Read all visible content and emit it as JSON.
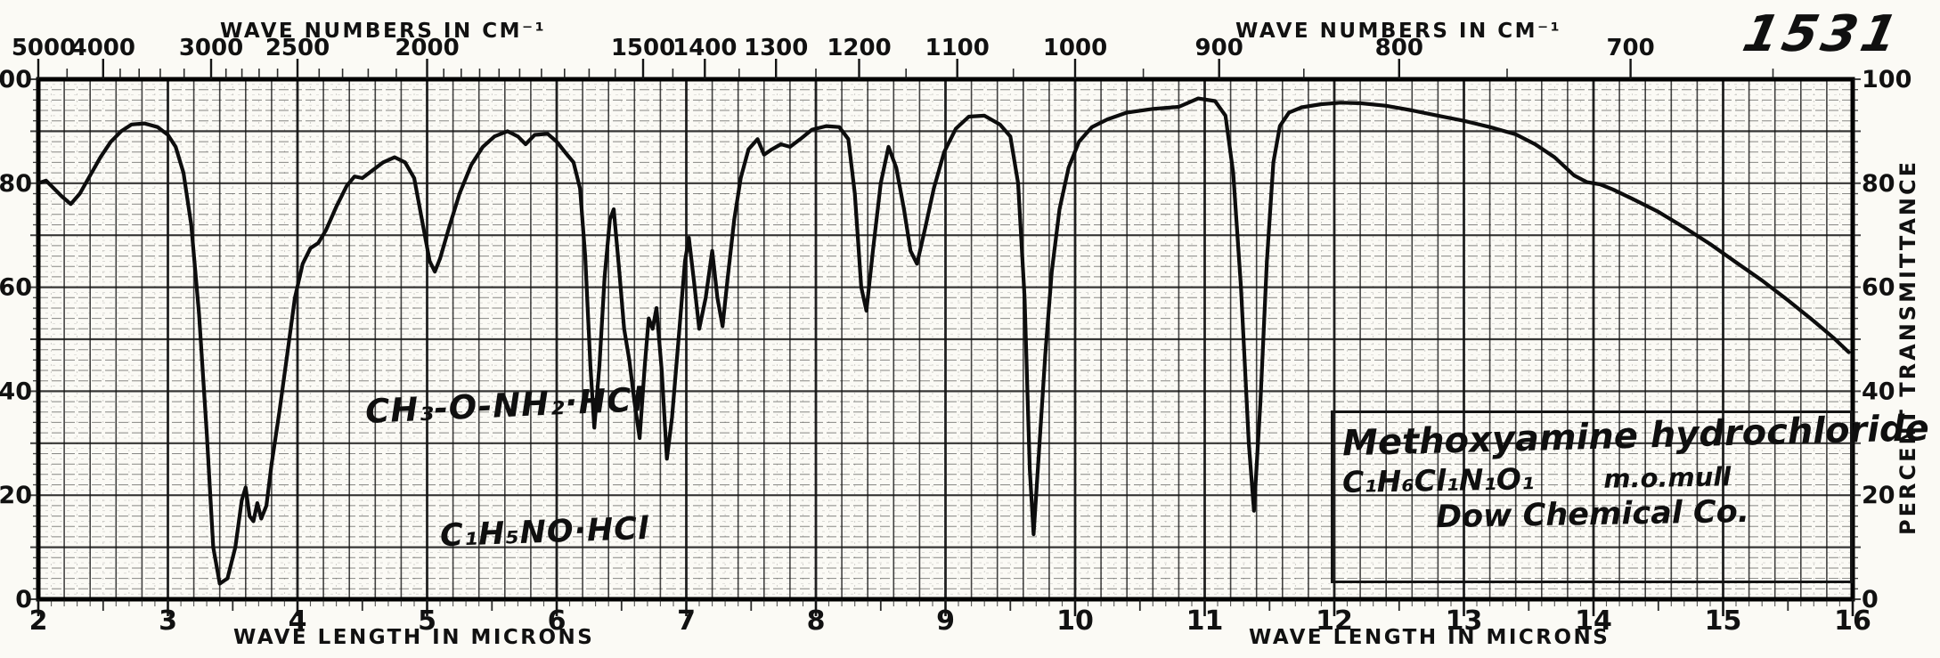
{
  "header": {
    "sheet_number": "1531"
  },
  "axes": {
    "top": {
      "title": "WAVE NUMBERS IN CM⁻¹"
    },
    "bottom": {
      "title": "WAVE LENGTH IN MICRONS"
    },
    "right": {
      "title": "PERCENT TRANSMITTANCE"
    }
  },
  "annotations": {
    "curve_label_structural": "CH₃-O-NH₂·HCl",
    "curve_label_empirical": "C₁H₅NO·HCl",
    "infobox": {
      "compound_name": "Methoxyamine hydrochloride",
      "formula": "C₁H₆Cl₁N₁O₁",
      "preparation": "m.o.mull",
      "company": "Dow Chemical Co."
    }
  },
  "colors": {
    "ink": "#141414",
    "paper": "#fbfaf5"
  },
  "chart_data": {
    "type": "line",
    "title": "Infrared absorption spectrum, sheet 1531 — Methoxyamine hydrochloride, m.o. mull, Dow Chemical Co.",
    "xlabel": "WAVE LENGTH IN MICRONS",
    "x2label": "WAVE NUMBERS IN CM⁻¹",
    "ylabel": "PERCENT TRANSMITTANCE",
    "xlim": [
      2,
      16
    ],
    "ylim": [
      0,
      100
    ],
    "grid": true,
    "x_ticks_microns": [
      2,
      3,
      4,
      5,
      6,
      7,
      8,
      9,
      10,
      11,
      12,
      13,
      14,
      15,
      16
    ],
    "y_ticks": [
      0,
      20,
      40,
      60,
      80,
      100
    ],
    "top_ticks_wavenumbers_major": [
      5000,
      4000,
      3000,
      2500,
      2000,
      1500,
      1400,
      1300,
      1200,
      1100,
      1000,
      900,
      800,
      700
    ],
    "top_ticks_wavenumbers_minor": [
      4500,
      3800,
      3600,
      3400,
      3200,
      2900,
      2800,
      2700,
      2600,
      2400,
      2300,
      2200,
      2100,
      1950,
      1900,
      1850,
      1800,
      1750,
      1700,
      1650,
      1600,
      1550,
      1450,
      1350,
      1250,
      1150,
      1050,
      950,
      850,
      750,
      650
    ],
    "key_absorption_minima_microns": [
      2.25,
      3.4,
      5.05,
      6.28,
      6.63,
      6.85,
      7.09,
      7.27,
      8.38,
      8.76,
      9.67,
      11.38
    ],
    "series": [
      {
        "name": "percent transmittance",
        "points": [
          [
            2.0,
            80
          ],
          [
            2.06,
            80.5
          ],
          [
            2.12,
            79
          ],
          [
            2.18,
            77.5
          ],
          [
            2.25,
            76
          ],
          [
            2.32,
            78
          ],
          [
            2.4,
            81.5
          ],
          [
            2.48,
            85
          ],
          [
            2.56,
            88
          ],
          [
            2.64,
            90
          ],
          [
            2.72,
            91.3
          ],
          [
            2.82,
            91.5
          ],
          [
            2.92,
            90.8
          ],
          [
            3.0,
            89.3
          ],
          [
            3.06,
            87
          ],
          [
            3.12,
            82
          ],
          [
            3.18,
            72
          ],
          [
            3.24,
            55
          ],
          [
            3.3,
            32
          ],
          [
            3.35,
            10
          ],
          [
            3.4,
            3
          ],
          [
            3.46,
            4
          ],
          [
            3.52,
            10
          ],
          [
            3.57,
            19
          ],
          [
            3.6,
            21.5
          ],
          [
            3.63,
            16
          ],
          [
            3.66,
            15
          ],
          [
            3.69,
            18.5
          ],
          [
            3.72,
            15.5
          ],
          [
            3.76,
            18
          ],
          [
            3.8,
            26
          ],
          [
            3.86,
            36
          ],
          [
            3.92,
            47
          ],
          [
            3.98,
            58
          ],
          [
            4.04,
            64.5
          ],
          [
            4.1,
            67.5
          ],
          [
            4.16,
            68.5
          ],
          [
            4.22,
            71
          ],
          [
            4.3,
            75.5
          ],
          [
            4.38,
            79.5
          ],
          [
            4.44,
            81.3
          ],
          [
            4.5,
            81
          ],
          [
            4.58,
            82.5
          ],
          [
            4.66,
            84
          ],
          [
            4.75,
            85
          ],
          [
            4.83,
            84
          ],
          [
            4.9,
            81
          ],
          [
            4.96,
            73
          ],
          [
            5.02,
            65
          ],
          [
            5.06,
            63
          ],
          [
            5.1,
            65.5
          ],
          [
            5.17,
            71.5
          ],
          [
            5.25,
            78
          ],
          [
            5.34,
            83.5
          ],
          [
            5.43,
            87
          ],
          [
            5.52,
            89
          ],
          [
            5.62,
            90
          ],
          [
            5.7,
            89
          ],
          [
            5.76,
            87.5
          ],
          [
            5.83,
            89.3
          ],
          [
            5.93,
            89.5
          ],
          [
            6.0,
            88
          ],
          [
            6.07,
            85.8
          ],
          [
            6.13,
            84
          ],
          [
            6.18,
            79
          ],
          [
            6.22,
            66
          ],
          [
            6.26,
            45
          ],
          [
            6.29,
            33
          ],
          [
            6.33,
            45
          ],
          [
            6.37,
            62
          ],
          [
            6.41,
            73
          ],
          [
            6.44,
            75
          ],
          [
            6.48,
            64
          ],
          [
            6.52,
            52
          ],
          [
            6.56,
            46
          ],
          [
            6.6,
            38
          ],
          [
            6.64,
            31
          ],
          [
            6.68,
            45
          ],
          [
            6.71,
            54
          ],
          [
            6.74,
            52
          ],
          [
            6.77,
            56
          ],
          [
            6.81,
            44
          ],
          [
            6.85,
            27
          ],
          [
            6.89,
            35
          ],
          [
            6.94,
            50
          ],
          [
            6.99,
            65
          ],
          [
            7.02,
            69.5
          ],
          [
            7.06,
            61
          ],
          [
            7.1,
            52
          ],
          [
            7.15,
            58
          ],
          [
            7.2,
            67
          ],
          [
            7.24,
            58
          ],
          [
            7.28,
            52.5
          ],
          [
            7.32,
            62
          ],
          [
            7.37,
            73
          ],
          [
            7.42,
            81
          ],
          [
            7.48,
            86.5
          ],
          [
            7.55,
            88.5
          ],
          [
            7.6,
            85.5
          ],
          [
            7.66,
            86.5
          ],
          [
            7.73,
            87.5
          ],
          [
            7.8,
            87
          ],
          [
            7.88,
            88.5
          ],
          [
            7.97,
            90.3
          ],
          [
            8.08,
            91
          ],
          [
            8.18,
            90.8
          ],
          [
            8.25,
            88.5
          ],
          [
            8.3,
            78
          ],
          [
            8.35,
            60
          ],
          [
            8.39,
            55.5
          ],
          [
            8.44,
            67
          ],
          [
            8.5,
            80
          ],
          [
            8.56,
            87
          ],
          [
            8.62,
            83
          ],
          [
            8.68,
            75
          ],
          [
            8.73,
            67
          ],
          [
            8.78,
            64.5
          ],
          [
            8.84,
            71
          ],
          [
            8.91,
            79
          ],
          [
            8.99,
            86
          ],
          [
            9.08,
            90.5
          ],
          [
            9.18,
            92.8
          ],
          [
            9.3,
            93
          ],
          [
            9.42,
            91.3
          ],
          [
            9.5,
            89
          ],
          [
            9.56,
            80
          ],
          [
            9.61,
            58
          ],
          [
            9.65,
            25
          ],
          [
            9.68,
            12.5
          ],
          [
            9.72,
            28
          ],
          [
            9.77,
            47
          ],
          [
            9.82,
            63
          ],
          [
            9.88,
            75
          ],
          [
            9.95,
            83
          ],
          [
            10.03,
            88
          ],
          [
            10.13,
            90.8
          ],
          [
            10.25,
            92.3
          ],
          [
            10.4,
            93.6
          ],
          [
            10.6,
            94.3
          ],
          [
            10.8,
            94.7
          ],
          [
            10.95,
            96.3
          ],
          [
            11.08,
            95.8
          ],
          [
            11.16,
            93
          ],
          [
            11.22,
            82
          ],
          [
            11.28,
            60
          ],
          [
            11.34,
            30
          ],
          [
            11.38,
            17
          ],
          [
            11.43,
            38
          ],
          [
            11.48,
            65
          ],
          [
            11.53,
            84
          ],
          [
            11.58,
            91
          ],
          [
            11.65,
            93.6
          ],
          [
            11.75,
            94.6
          ],
          [
            11.9,
            95.2
          ],
          [
            12.05,
            95.5
          ],
          [
            12.2,
            95.4
          ],
          [
            12.4,
            94.9
          ],
          [
            12.6,
            94
          ],
          [
            12.8,
            93
          ],
          [
            13.0,
            92
          ],
          [
            13.2,
            90.8
          ],
          [
            13.4,
            89.4
          ],
          [
            13.55,
            87.5
          ],
          [
            13.7,
            85
          ],
          [
            13.85,
            81.5
          ],
          [
            13.95,
            80.2
          ],
          [
            14.05,
            79.8
          ],
          [
            14.15,
            78.8
          ],
          [
            14.3,
            77
          ],
          [
            14.5,
            74.5
          ],
          [
            14.7,
            71.5
          ],
          [
            14.9,
            68.3
          ],
          [
            15.1,
            64.8
          ],
          [
            15.3,
            61.3
          ],
          [
            15.5,
            57.5
          ],
          [
            15.7,
            53.5
          ],
          [
            15.85,
            50.3
          ],
          [
            15.97,
            47.5
          ]
        ]
      }
    ]
  }
}
